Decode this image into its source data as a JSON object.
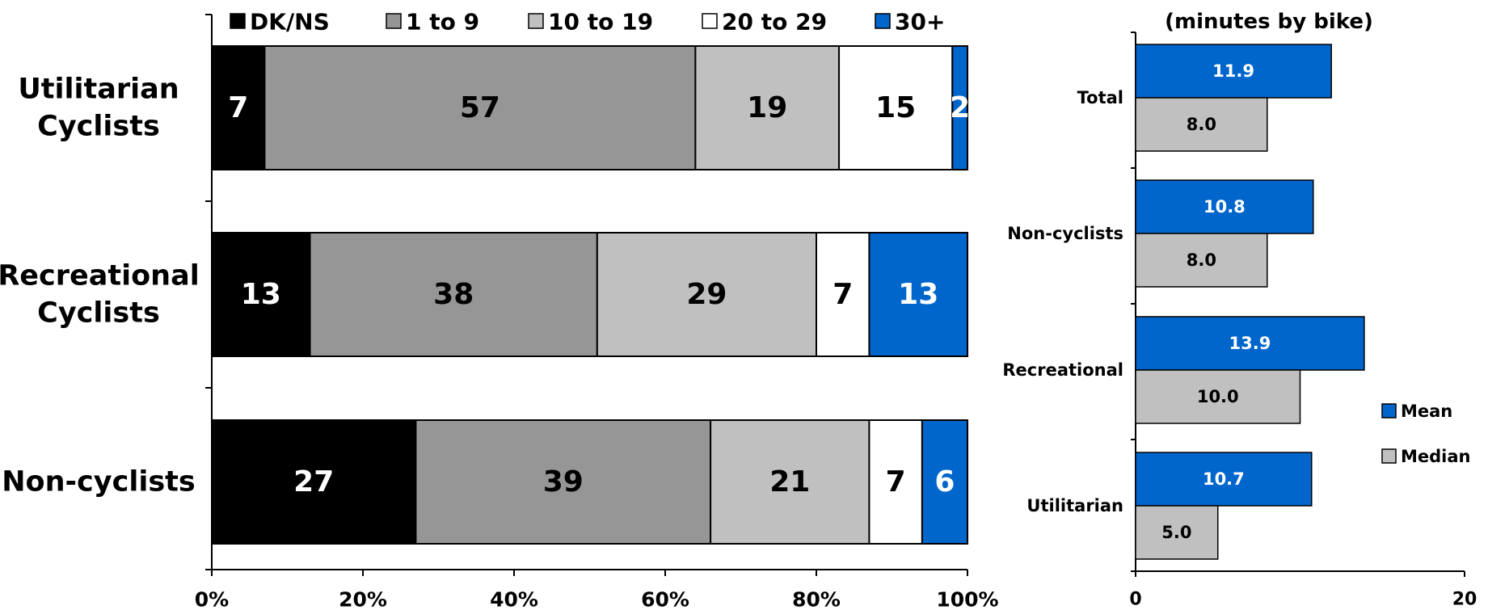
{
  "colors": {
    "dkns": "#000000",
    "one_to_nine": "#969696",
    "ten_to_nineteen": "#c0c0c0",
    "twenty_to_twentynine": "#ffffff",
    "thirty_plus": "#0066cc",
    "mean": "#0066cc",
    "median": "#c0c0c0"
  },
  "chart_data": [
    {
      "type": "bar",
      "orientation": "horizontal",
      "stacked": true,
      "categories": [
        "Utilitarian Cyclists",
        "Recreational Cyclists",
        "Non-cyclists"
      ],
      "series": [
        {
          "name": "DK/NS",
          "values": [
            7,
            13,
            27
          ]
        },
        {
          "name": "1 to 9",
          "values": [
            57,
            38,
            39
          ]
        },
        {
          "name": "10 to 19",
          "values": [
            19,
            29,
            21
          ]
        },
        {
          "name": "20 to 29",
          "values": [
            15,
            7,
            7
          ]
        },
        {
          "name": "30+",
          "values": [
            2,
            13,
            6
          ]
        }
      ],
      "xlim": [
        0,
        100
      ],
      "x_ticks": [
        "0%",
        "20%",
        "40%",
        "60%",
        "80%",
        "100%"
      ],
      "legend_position": "top",
      "grid": false,
      "data_labels": true
    },
    {
      "type": "bar",
      "orientation": "horizontal",
      "title": "(minutes by bike)",
      "categories": [
        "Total",
        "Non-cyclists",
        "Recreational",
        "Utilitarian"
      ],
      "series": [
        {
          "name": "Mean",
          "values": [
            11.9,
            10.8,
            13.9,
            10.7
          ]
        },
        {
          "name": "Median",
          "values": [
            8.0,
            8.0,
            10.0,
            5.0
          ]
        }
      ],
      "xlim": [
        0,
        20
      ],
      "x_ticks": [
        "0",
        "20"
      ],
      "legend_position": "right",
      "grid": false,
      "data_labels": true
    }
  ]
}
